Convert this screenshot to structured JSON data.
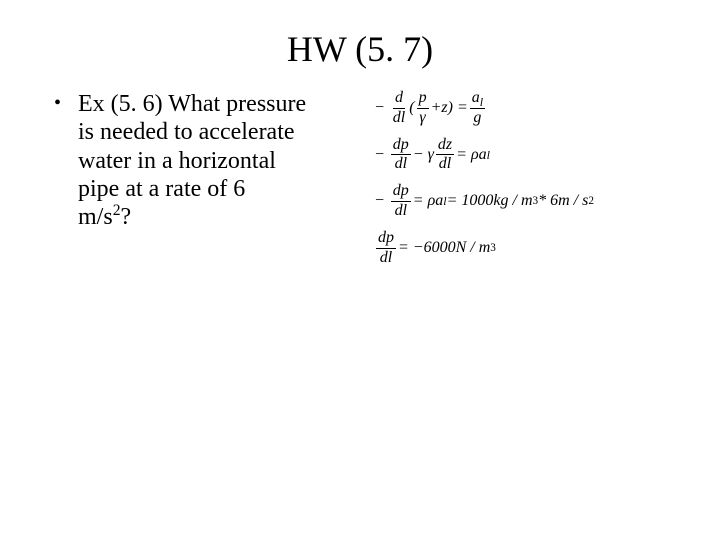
{
  "title": "HW (5. 7)",
  "bullet": {
    "marker": "•",
    "line1": "Ex (5. 6) What pressure",
    "line2": "is needed to accelerate",
    "line3": "water in a horizontal",
    "line4": "pipe at a rate of 6",
    "line5_pre": "m/s",
    "line5_sup": "2",
    "line5_post": "?"
  },
  "equations": {
    "eq1": {
      "lead_minus": "−",
      "frac1_num": "d",
      "frac1_den": "dl",
      "open": "(",
      "frac2_num": "p",
      "frac2_den": "γ",
      "plus": " + ",
      "z": "z",
      "close": ") = ",
      "frac3_num": "a",
      "frac3_num_sub": "l",
      "frac3_den": "g"
    },
    "eq2": {
      "lead_minus": "−",
      "frac1_num": "dp",
      "frac1_den": "dl",
      "mid": " − γ",
      "frac2_num": "dz",
      "frac2_den": "dl",
      "eq": " = ρa",
      "sub": "l"
    },
    "eq3": {
      "lead_minus": "−",
      "frac1_num": "dp",
      "frac1_den": "dl",
      "eq": " = ρa",
      "sub": "l",
      "rhs_pre": " = 1000",
      "rhs_unit1": "kg / m",
      "rhs_sup1": "3",
      "rhs_mid": " * 6",
      "rhs_unit2": "m / s",
      "rhs_sup2": "2"
    },
    "eq4": {
      "frac_num": "dp",
      "frac_den": "dl",
      "eq": " = −6000 ",
      "unit": "N / m",
      "sup": "3"
    }
  },
  "style": {
    "background": "#ffffff",
    "text_color": "#000000",
    "title_fontsize": 36,
    "body_fontsize": 24,
    "eq_fontsize": 16
  }
}
